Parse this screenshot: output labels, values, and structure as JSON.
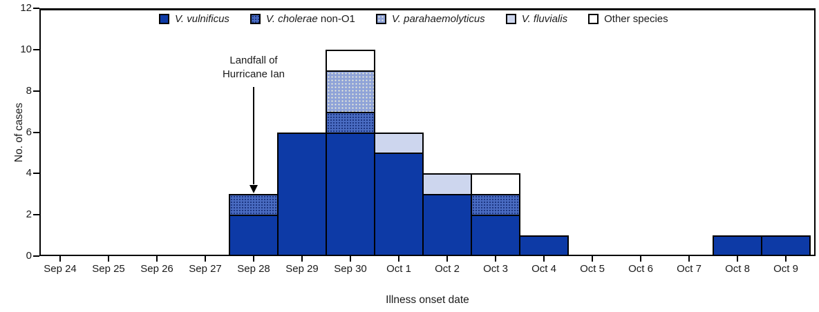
{
  "chart_data": {
    "type": "bar",
    "stacked": true,
    "title": "",
    "xlabel": "Illness onset date",
    "ylabel": "No. of cases",
    "ylim": [
      0,
      12
    ],
    "y_ticks": [
      0,
      2,
      4,
      6,
      8,
      10,
      12
    ],
    "grid": false,
    "legend_position": "top-inside-horizontal",
    "categories": [
      "Sep 24",
      "Sep 25",
      "Sep 26",
      "Sep 27",
      "Sep 28",
      "Sep 29",
      "Sep 30",
      "Oct 1",
      "Oct 2",
      "Oct 3",
      "Oct 4",
      "Oct 5",
      "Oct 6",
      "Oct 7",
      "Oct 8",
      "Oct 9"
    ],
    "series": [
      {
        "key": "vulnificus",
        "name_italic": "V. vulnificus",
        "name_regular": "",
        "color": "#0d3aa6",
        "pattern": "solid",
        "values": [
          0,
          0,
          0,
          0,
          2,
          6,
          6,
          5,
          3,
          2,
          1,
          0,
          0,
          0,
          1,
          1
        ]
      },
      {
        "key": "cholerae_non_o1",
        "name_italic": "V. cholerae",
        "name_regular": " non-O1",
        "color": "#4a6cc2",
        "pattern": "dark-dots",
        "values": [
          0,
          0,
          0,
          0,
          1,
          0,
          1,
          0,
          0,
          1,
          0,
          0,
          0,
          0,
          0,
          0
        ]
      },
      {
        "key": "parahaemolyticus",
        "name_italic": "V. parahaemolyticus",
        "name_regular": "",
        "color": "#8fa3d8",
        "pattern": "light-dots",
        "values": [
          0,
          0,
          0,
          0,
          0,
          0,
          2,
          0,
          0,
          0,
          0,
          0,
          0,
          0,
          0,
          0
        ]
      },
      {
        "key": "fluvialis",
        "name_italic": "V. fluvialis",
        "name_regular": "",
        "color": "#cdd6ee",
        "pattern": "solid",
        "values": [
          0,
          0,
          0,
          0,
          0,
          0,
          0,
          1,
          1,
          0,
          0,
          0,
          0,
          0,
          0,
          0
        ]
      },
      {
        "key": "other",
        "name_italic": "",
        "name_regular": "Other species",
        "color": "#ffffff",
        "pattern": "solid",
        "values": [
          0,
          0,
          0,
          0,
          0,
          0,
          1,
          0,
          0,
          1,
          0,
          0,
          0,
          0,
          0,
          0
        ]
      }
    ],
    "bar_totals": [
      0,
      0,
      0,
      0,
      3,
      6,
      10,
      6,
      4,
      4,
      1,
      0,
      0,
      0,
      1,
      1
    ],
    "annotation": {
      "text_line1": "Landfall of",
      "text_line2": "Hurricane Ian",
      "arrow_points_to_category": "Sep 28",
      "arrow_points_to_value": 3
    },
    "colors": {
      "axis": "#000000",
      "text": "#1a1a1a",
      "background": "#ffffff",
      "bar_border": "#000000"
    }
  }
}
